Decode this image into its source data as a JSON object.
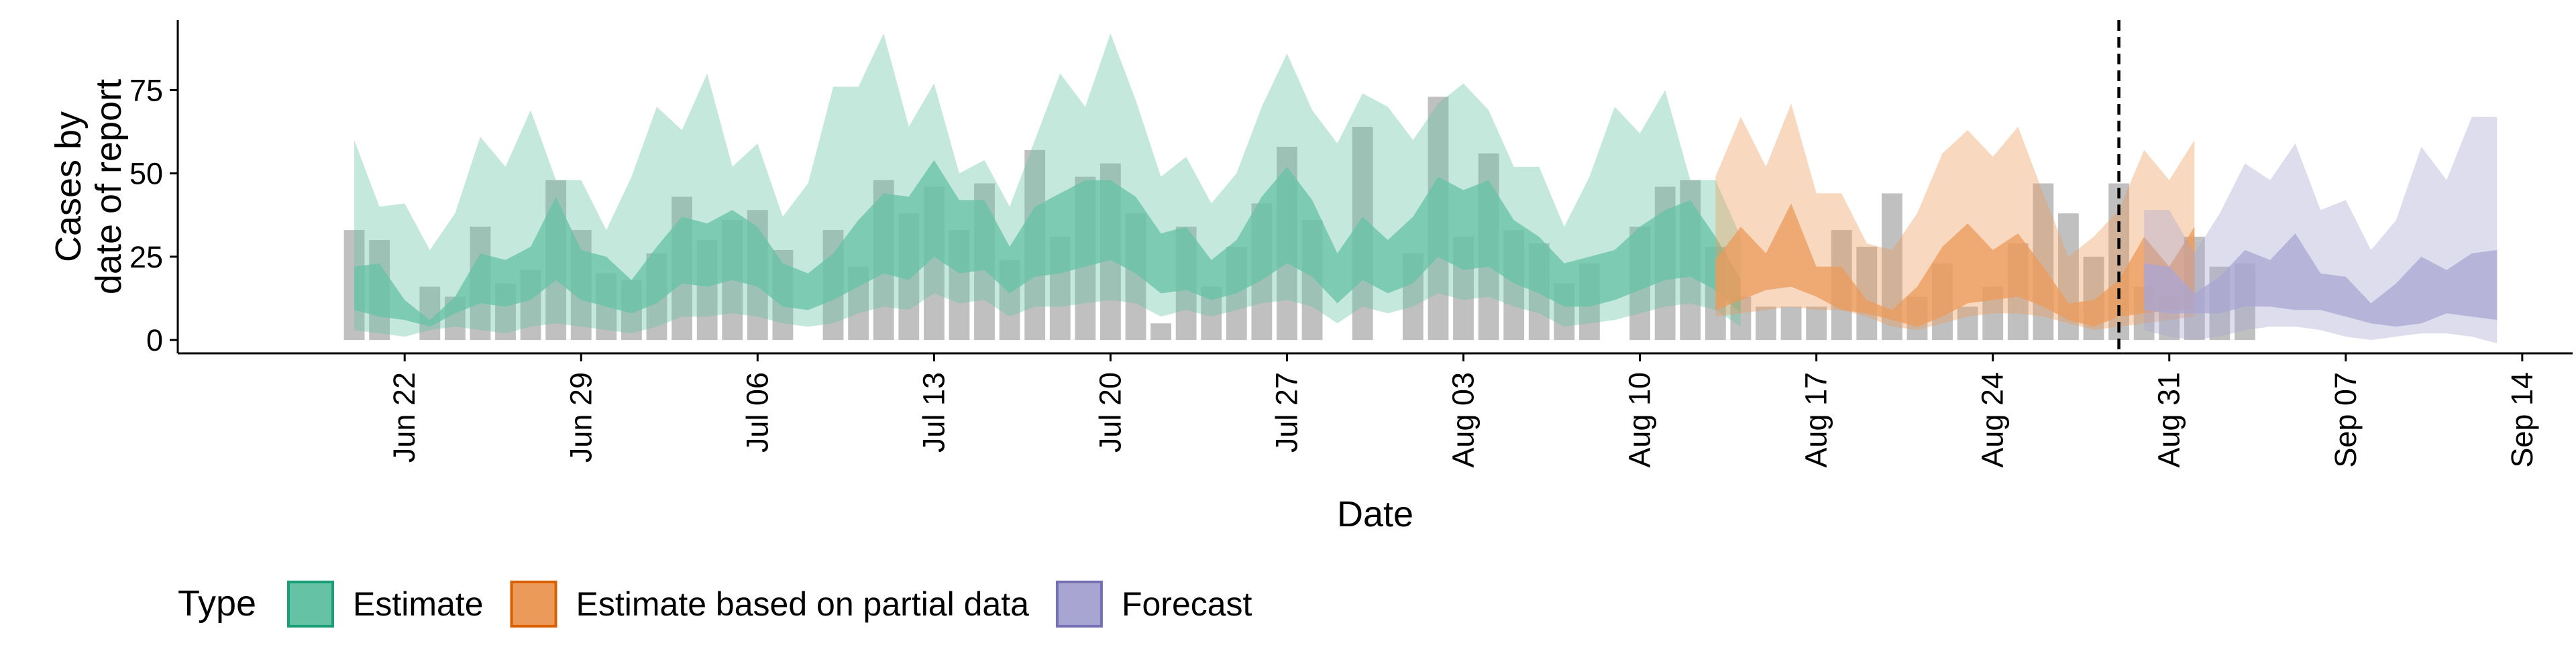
{
  "chart_data": {
    "type": "area",
    "xlabel": "Date",
    "ylabel": [
      "Cases by",
      "date of report"
    ],
    "y_ticks": [
      0,
      25,
      50,
      75
    ],
    "ylim": [
      -4,
      96
    ],
    "xlim_days": [
      "2020-06-13",
      "2020-09-16"
    ],
    "x_ticks": [
      {
        "date": "2020-06-22",
        "label": "Jun 22"
      },
      {
        "date": "2020-06-29",
        "label": "Jun 29"
      },
      {
        "date": "2020-07-06",
        "label": "Jul 06"
      },
      {
        "date": "2020-07-13",
        "label": "Jul 13"
      },
      {
        "date": "2020-07-20",
        "label": "Jul 20"
      },
      {
        "date": "2020-07-27",
        "label": "Jul 27"
      },
      {
        "date": "2020-08-03",
        "label": "Aug 03"
      },
      {
        "date": "2020-08-10",
        "label": "Aug 10"
      },
      {
        "date": "2020-08-17",
        "label": "Aug 17"
      },
      {
        "date": "2020-08-24",
        "label": "Aug 24"
      },
      {
        "date": "2020-08-31",
        "label": "Aug 31"
      },
      {
        "date": "2020-09-07",
        "label": "Sep 07"
      },
      {
        "date": "2020-09-14",
        "label": "Sep 14"
      }
    ],
    "grid": false,
    "legend_position": "bottom-left",
    "legend_title": "Type",
    "legend": [
      {
        "label": "Estimate",
        "fill": "#66c2a5",
        "stroke": "#1b9e77"
      },
      {
        "label": "Estimate based on partial data",
        "fill": "#ec9a59",
        "stroke": "#d95f02"
      },
      {
        "label": "Forecast",
        "fill": "#a9a5d3",
        "stroke": "#7570b3"
      }
    ],
    "forecast_date": "2020-08-29",
    "reported_cases": {
      "start_date": "2020-06-20",
      "values": [
        33,
        30,
        0,
        16,
        13,
        34,
        17,
        21,
        48,
        33,
        20,
        18,
        26,
        43,
        30,
        36,
        39,
        27,
        0,
        33,
        22,
        48,
        38,
        46,
        33,
        47,
        24,
        57,
        31,
        49,
        53,
        38,
        5,
        34,
        16,
        28,
        41,
        58,
        36,
        0,
        64,
        0,
        26,
        73,
        31,
        56,
        33,
        29,
        17,
        23,
        0,
        34,
        46,
        48,
        28,
        13,
        10,
        10,
        10,
        33,
        28,
        44,
        13,
        23,
        10,
        16,
        29,
        47,
        38,
        25,
        47,
        16,
        13,
        31,
        22,
        23
      ]
    },
    "series": [
      {
        "name": "Estimate",
        "start_date": "2020-06-20",
        "outer_low": [
          3,
          2,
          1,
          3,
          4,
          3,
          2,
          4,
          5,
          4,
          3,
          2,
          4,
          7,
          7,
          8,
          7,
          5,
          4,
          5,
          8,
          10,
          9,
          14,
          11,
          12,
          7,
          10,
          10,
          11,
          12,
          11,
          7,
          9,
          7,
          9,
          11,
          12,
          10,
          5,
          10,
          8,
          10,
          14,
          12,
          13,
          10,
          8,
          4,
          5,
          6,
          8,
          10,
          11,
          9,
          4
        ],
        "inner_low": [
          9,
          7,
          6,
          4,
          8,
          11,
          10,
          12,
          18,
          12,
          10,
          8,
          11,
          17,
          16,
          18,
          16,
          10,
          9,
          12,
          16,
          20,
          18,
          25,
          20,
          21,
          14,
          19,
          20,
          22,
          24,
          20,
          14,
          15,
          12,
          14,
          18,
          23,
          19,
          11,
          18,
          14,
          17,
          25,
          21,
          22,
          17,
          14,
          10,
          10,
          12,
          15,
          18,
          19,
          15,
          8
        ],
        "inner_high": [
          22,
          23,
          12,
          6,
          13,
          26,
          24,
          28,
          43,
          27,
          25,
          18,
          28,
          37,
          35,
          39,
          34,
          23,
          20,
          26,
          36,
          44,
          43,
          54,
          42,
          42,
          28,
          40,
          44,
          48,
          48,
          43,
          32,
          34,
          24,
          30,
          43,
          52,
          42,
          26,
          37,
          30,
          37,
          49,
          45,
          48,
          36,
          31,
          23,
          25,
          27,
          34,
          39,
          42,
          31,
          18
        ],
        "outer_high": [
          60,
          40,
          41,
          27,
          38,
          61,
          52,
          69,
          48,
          48,
          33,
          49,
          70,
          63,
          80,
          52,
          59,
          37,
          47,
          76,
          76,
          92,
          64,
          77,
          50,
          54,
          40,
          60,
          80,
          70,
          92,
          72,
          49,
          55,
          41,
          50,
          70,
          86,
          69,
          59,
          74,
          70,
          60,
          71,
          77,
          69,
          52,
          52,
          34,
          49,
          70,
          62,
          75,
          48,
          48,
          31
        ]
      },
      {
        "name": "Estimate based on partial data",
        "start_date": "2020-08-13",
        "outer_low": [
          7,
          8,
          9,
          10,
          9,
          9,
          7,
          4,
          3,
          5,
          7,
          8,
          8,
          7,
          5,
          3,
          4,
          5,
          6,
          7
        ],
        "inner_low": [
          9,
          12,
          15,
          16,
          13,
          9,
          8,
          6,
          4,
          7,
          11,
          12,
          13,
          10,
          6,
          4,
          7,
          8,
          9,
          9
        ],
        "inner_high": [
          24,
          34,
          26,
          41,
          22,
          22,
          12,
          9,
          16,
          28,
          35,
          27,
          32,
          22,
          11,
          12,
          18,
          31,
          22,
          34
        ],
        "outer_high": [
          49,
          67,
          52,
          71,
          44,
          44,
          29,
          27,
          38,
          56,
          63,
          55,
          64,
          44,
          25,
          31,
          39,
          57,
          48,
          60
        ]
      },
      {
        "name": "Forecast",
        "start_date": "2020-08-30",
        "outer_low": [
          3,
          1,
          0,
          1,
          3,
          4,
          4,
          3,
          1,
          0,
          1,
          2,
          2,
          1,
          -1
        ],
        "inner_low": [
          9,
          8,
          8,
          8,
          10,
          10,
          9,
          9,
          7,
          5,
          4,
          5,
          8,
          7,
          6
        ],
        "inner_high": [
          23,
          22,
          14,
          19,
          27,
          24,
          32,
          20,
          19,
          11,
          17,
          25,
          21,
          26,
          27
        ],
        "outer_high": [
          39,
          39,
          26,
          38,
          53,
          48,
          59,
          39,
          42,
          27,
          36,
          58,
          48,
          67,
          67
        ]
      }
    ]
  }
}
